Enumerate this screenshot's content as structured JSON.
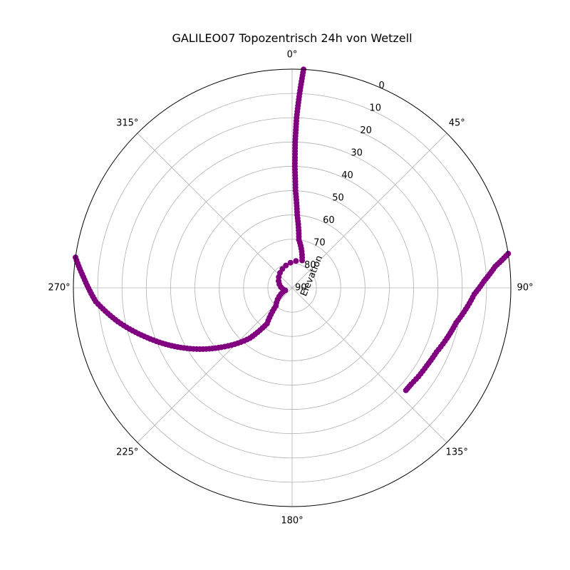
{
  "chart_data": {
    "type": "scatter",
    "projection": "polar",
    "title": "GALILEO07 Topozentrisch 24h von Wetzell",
    "theta_zero_location": "north",
    "theta_direction": "clockwise",
    "theta_ticks": [
      0,
      45,
      90,
      135,
      180,
      225,
      270,
      315
    ],
    "theta_tick_labels": [
      "0°",
      "45°",
      "90°",
      "135°",
      "180°",
      "225°",
      "270°",
      "315°"
    ],
    "radial_axis_label": "Elevation",
    "radial_ticks": [
      0,
      10,
      20,
      30,
      40,
      50,
      60,
      70,
      80,
      90
    ],
    "radial_tick_labels": [
      "0",
      "10",
      "20",
      "30",
      "40",
      "50",
      "60",
      "70",
      "80",
      "90"
    ],
    "radial_inverted": true,
    "grid": true,
    "marker_color": "#800080",
    "series": [
      {
        "points": [
          {
            "azimuth": 81.0,
            "elevation": 0.0
          },
          {
            "azimuth": 84.0,
            "elevation": 6.0
          },
          {
            "azimuth": 88.0,
            "elevation": 11.0
          },
          {
            "azimuth": 92.0,
            "elevation": 15.0
          },
          {
            "azimuth": 97.0,
            "elevation": 18.0
          },
          {
            "azimuth": 102.0,
            "elevation": 21.0
          },
          {
            "azimuth": 108.0,
            "elevation": 23.0
          },
          {
            "azimuth": 114.0,
            "elevation": 25.0
          },
          {
            "azimuth": 120.0,
            "elevation": 26.0
          },
          {
            "azimuth": 125.0,
            "elevation": 26.5
          },
          {
            "azimuth": 129.0,
            "elevation": 27.0
          },
          {
            "azimuth": 132.0,
            "elevation": 27.0
          }
        ]
      },
      {
        "points": [
          {
            "azimuth": 3.0,
            "elevation": 0.0
          },
          {
            "azimuth": 2.2,
            "elevation": 10.0
          },
          {
            "azimuth": 1.5,
            "elevation": 20.0
          },
          {
            "azimuth": 1.2,
            "elevation": 30.0
          },
          {
            "azimuth": 1.3,
            "elevation": 40.0
          },
          {
            "azimuth": 2.0,
            "elevation": 50.0
          },
          {
            "azimuth": 4.0,
            "elevation": 60.0
          },
          {
            "azimuth": 8.0,
            "elevation": 70.0
          },
          {
            "azimuth": 20.0,
            "elevation": 78.0
          },
          {
            "azimuth": 250.0,
            "elevation": 87.0
          },
          {
            "azimuth": 222.0,
            "elevation": 80.0
          },
          {
            "azimuth": 215.0,
            "elevation": 72.0
          },
          {
            "azimuth": 220.0,
            "elevation": 63.0
          },
          {
            "azimuth": 230.0,
            "elevation": 52.0
          },
          {
            "azimuth": 241.0,
            "elevation": 39.0
          },
          {
            "azimuth": 251.0,
            "elevation": 27.0
          },
          {
            "azimuth": 259.0,
            "elevation": 17.0
          },
          {
            "azimuth": 266.0,
            "elevation": 9.0
          },
          {
            "azimuth": 273.0,
            "elevation": 4.0
          },
          {
            "azimuth": 278.0,
            "elevation": 0.0
          }
        ]
      }
    ]
  }
}
